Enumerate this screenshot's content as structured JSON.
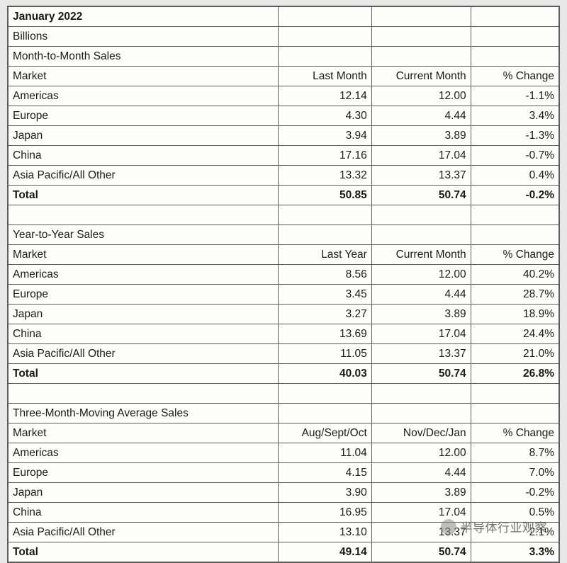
{
  "table": {
    "title": "January 2022",
    "units": "Billions",
    "columns_layout": {
      "market_width_pct": 49,
      "col1_width_pct": 17,
      "col2_width_pct": 18,
      "col3_width_pct": 16
    },
    "colors": {
      "background": "#fdfdfb",
      "border": "#5c5c5c",
      "text": "#1a1a1a",
      "page_bg": "#e8e8e8"
    },
    "font": {
      "family": "Arial",
      "size_pt": 11.5,
      "bold_weight": 700
    },
    "sections": [
      {
        "heading": "Month-to-Month Sales",
        "headers": [
          "Market",
          "Last Month",
          "Current Month",
          "% Change"
        ],
        "rows": [
          [
            "Americas",
            "12.14",
            "12.00",
            "-1.1%"
          ],
          [
            "Europe",
            "4.30",
            "4.44",
            "3.4%"
          ],
          [
            "Japan",
            "3.94",
            "3.89",
            "-1.3%"
          ],
          [
            "China",
            "17.16",
            "17.04",
            "-0.7%"
          ],
          [
            "Asia Pacific/All Other",
            "13.32",
            "13.37",
            "0.4%"
          ]
        ],
        "total": [
          "Total",
          "50.85",
          "50.74",
          "-0.2%"
        ]
      },
      {
        "heading": "Year-to-Year Sales",
        "headers": [
          "Market",
          "Last Year",
          "Current Month",
          "% Change"
        ],
        "rows": [
          [
            "Americas",
            "8.56",
            "12.00",
            "40.2%"
          ],
          [
            "Europe",
            "3.45",
            "4.44",
            "28.7%"
          ],
          [
            "Japan",
            "3.27",
            "3.89",
            "18.9%"
          ],
          [
            "China",
            "13.69",
            "17.04",
            "24.4%"
          ],
          [
            "Asia Pacific/All Other",
            "11.05",
            "13.37",
            "21.0%"
          ]
        ],
        "total": [
          "Total",
          "40.03",
          "50.74",
          "26.8%"
        ]
      },
      {
        "heading": "Three-Month-Moving Average Sales",
        "headers": [
          "Market",
          "Aug/Sept/Oct",
          "Nov/Dec/Jan",
          "% Change"
        ],
        "rows": [
          [
            "Americas",
            "11.04",
            "12.00",
            "8.7%"
          ],
          [
            "Europe",
            "4.15",
            "4.44",
            "7.0%"
          ],
          [
            "Japan",
            "3.90",
            "3.89",
            "-0.2%"
          ],
          [
            "China",
            "16.95",
            "17.04",
            "0.5%"
          ],
          [
            "Asia Pacific/All Other",
            "13.10",
            "13.37",
            "2.1%"
          ]
        ],
        "total": [
          "Total",
          "49.14",
          "50.74",
          "3.3%"
        ]
      }
    ]
  },
  "watermark": {
    "text": "半导体行业观察",
    "color": "#737373",
    "fontsize_pt": 13
  }
}
